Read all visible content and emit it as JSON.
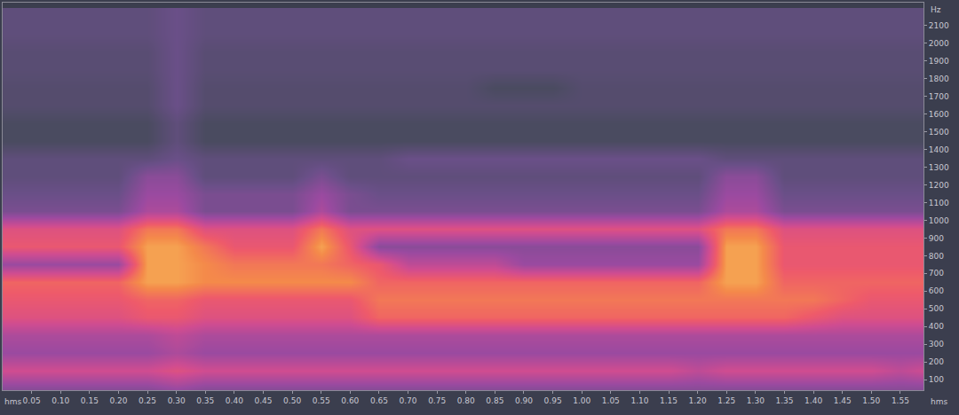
{
  "chart_data": {
    "type": "heatmap",
    "xlabel": "hms",
    "ylabel": "Hz",
    "grid": false,
    "xlim": [
      0,
      1.59
    ],
    "ylim": [
      40,
      2230
    ],
    "zlim": [
      0,
      10
    ],
    "xticks": [
      0.05,
      {
        "value": 0.1,
        "label": "0.10"
      },
      0.15,
      {
        "value": 0.2,
        "label": "0.20"
      },
      0.25,
      {
        "value": 0.3,
        "label": "0.30"
      },
      0.35,
      {
        "value": 0.4,
        "label": "0.40"
      },
      0.45,
      {
        "value": 0.5,
        "label": "0.50"
      },
      0.55,
      {
        "value": 0.6,
        "label": "0.60"
      },
      0.65,
      {
        "value": 0.7,
        "label": "0.70"
      },
      0.75,
      {
        "value": 0.8,
        "label": "0.80"
      },
      0.85,
      {
        "value": 0.9,
        "label": "0.90"
      },
      0.95,
      {
        "value": 1,
        "label": "1.00"
      },
      1.05,
      {
        "value": 1.1,
        "label": "1.10"
      },
      1.15,
      {
        "value": 1.2,
        "label": "1.20"
      },
      1.25,
      {
        "value": 1.3,
        "label": "1.30"
      },
      1.35,
      {
        "value": 1.4,
        "label": "1.40"
      },
      1.45,
      {
        "value": 1.5,
        "label": "1.50"
      },
      1.55
    ],
    "yticks": [
      100,
      200,
      300,
      400,
      500,
      600,
      700,
      800,
      900,
      1000,
      1100,
      1200,
      1300,
      1400,
      1500,
      1600,
      1700,
      1800,
      1900,
      2000,
      2100
    ],
    "x": [
      0,
      0.05,
      0.1,
      0.15,
      0.2,
      0.25,
      0.3,
      0.35,
      0.4,
      0.45,
      0.5,
      0.55,
      0.6,
      0.65,
      0.7,
      0.75,
      0.8,
      0.85,
      0.9,
      0.95,
      1,
      1.05,
      1.1,
      1.15,
      1.2,
      1.25,
      1.3,
      1.35,
      1.4,
      1.45,
      1.5,
      1.55,
      1.6
    ],
    "y": [
      50,
      150,
      250,
      350,
      450,
      550,
      650,
      750,
      850,
      950,
      1050,
      1150,
      1250,
      1350,
      1450,
      1550,
      1650,
      1750,
      1850,
      1950,
      2050,
      2150
    ],
    "z": [
      [
        4,
        4,
        4,
        4,
        4,
        4,
        4.5,
        4,
        4,
        4,
        4,
        4,
        4,
        4,
        4,
        4,
        4,
        4,
        4,
        4,
        4,
        4,
        4,
        4,
        4,
        4,
        4,
        4,
        4,
        4,
        4,
        4,
        4
      ],
      [
        6,
        6,
        6,
        6,
        6,
        6,
        6.5,
        6,
        6,
        6,
        6,
        6,
        6,
        6,
        6,
        6,
        6,
        6,
        6,
        6,
        6,
        6,
        6,
        6,
        5.5,
        6,
        6,
        6,
        6,
        6,
        6,
        5.5,
        6
      ],
      [
        4.5,
        4.5,
        4.5,
        4.5,
        4.5,
        4.5,
        5,
        4.5,
        4.5,
        4.5,
        4.5,
        4.5,
        4.5,
        4.5,
        4.5,
        4.5,
        4.5,
        4.5,
        4.5,
        4.5,
        4.5,
        4.5,
        4.5,
        4.5,
        4.5,
        4.5,
        4.5,
        4.5,
        4.5,
        4.5,
        4.5,
        4.5,
        4.5
      ],
      [
        5,
        5,
        5,
        5,
        5,
        5,
        5.5,
        5,
        5,
        5,
        5,
        5,
        5,
        5,
        5,
        5,
        5,
        5,
        5,
        5,
        5,
        5,
        5,
        5,
        5,
        5,
        5,
        5,
        5,
        5,
        5,
        5,
        5
      ],
      [
        6.5,
        6.5,
        6.5,
        6.5,
        6.5,
        7,
        7,
        6.5,
        6.5,
        6.5,
        6.5,
        6.5,
        6.5,
        7.5,
        7.5,
        7.5,
        7.5,
        7.5,
        7.5,
        7.5,
        7.5,
        7.5,
        7.5,
        7.5,
        7.5,
        7.5,
        7.5,
        7.5,
        7,
        6.5,
        6.5,
        6.5,
        6.5
      ],
      [
        7,
        7,
        7,
        7,
        7,
        7.5,
        7.5,
        7,
        7,
        7,
        7,
        7,
        7,
        8,
        8,
        8,
        8,
        8,
        8,
        8,
        8,
        8,
        8,
        8,
        8,
        8,
        8,
        8,
        8,
        7.5,
        7,
        7,
        7
      ],
      [
        7.5,
        7.5,
        7.5,
        7.5,
        7.5,
        9,
        9,
        8.5,
        8.5,
        8.5,
        8.5,
        8.5,
        8.5,
        7.5,
        7.5,
        7.5,
        7.5,
        7.5,
        7.5,
        7.5,
        7.5,
        7.5,
        7.5,
        7.5,
        7.5,
        9,
        9,
        7.5,
        7.5,
        7.5,
        7.5,
        7.5,
        7.5
      ],
      [
        4.5,
        4.5,
        4.5,
        4.5,
        4.5,
        9,
        9,
        8.5,
        8,
        8,
        8,
        8,
        7.5,
        7,
        5.5,
        5.5,
        5.5,
        5.5,
        4.5,
        4.5,
        4.5,
        4.5,
        4.5,
        4.5,
        4.5,
        9,
        9,
        7,
        7,
        7,
        7,
        7,
        7
      ],
      [
        7,
        7,
        7,
        7,
        7,
        9,
        9,
        8,
        7,
        7,
        7,
        9,
        7,
        4,
        4,
        4,
        4,
        4,
        4,
        4,
        4,
        4,
        4,
        4,
        4,
        9,
        9,
        7,
        7,
        7,
        7,
        7,
        7
      ],
      [
        6.5,
        6.5,
        6.5,
        6.5,
        6.5,
        8,
        8,
        6.5,
        6.5,
        6.5,
        6.5,
        8,
        6.5,
        6.5,
        6.5,
        6.5,
        6.5,
        6.5,
        6.5,
        6.5,
        6.5,
        6.5,
        6.5,
        6.5,
        6.5,
        8,
        8,
        6.5,
        6.5,
        6.5,
        6.5,
        6.5,
        6.5
      ],
      [
        3.5,
        3.5,
        3.5,
        3.5,
        3.5,
        5,
        5,
        3.5,
        3.5,
        3.5,
        3.5,
        5,
        3.5,
        3.5,
        3.5,
        3.5,
        3.5,
        3.5,
        3.5,
        3.5,
        3.5,
        3.5,
        3.5,
        3.5,
        3.5,
        5,
        5,
        3.5,
        3.5,
        3.5,
        3.5,
        3.5,
        3.5
      ],
      [
        3,
        3,
        3,
        3,
        3,
        4.5,
        4.5,
        3.5,
        3.5,
        3.5,
        3.5,
        4.5,
        3.5,
        3,
        3,
        3,
        3,
        3,
        3,
        3,
        3,
        3,
        3,
        3,
        3,
        4.5,
        4.5,
        3,
        3,
        3,
        3,
        3,
        3
      ],
      [
        2.5,
        2.5,
        2.5,
        2.5,
        2.5,
        4,
        4,
        2.5,
        2.5,
        2.5,
        2.5,
        3.5,
        2.5,
        2.5,
        2.5,
        2.5,
        2.5,
        2.5,
        2.5,
        2.5,
        2.5,
        2.5,
        2.5,
        2.5,
        2.5,
        4,
        4,
        2.5,
        2.5,
        2.5,
        2.5,
        2.5,
        2.5
      ],
      [
        2.5,
        2.5,
        2.5,
        2.5,
        2.5,
        2.5,
        3,
        2.5,
        2.5,
        2.5,
        2.5,
        2.5,
        2.5,
        2.5,
        3,
        3,
        3,
        3,
        3,
        3,
        3,
        3,
        3,
        3,
        3,
        2.5,
        2.5,
        2.5,
        2.5,
        2.5,
        2.5,
        2.5,
        2.5
      ],
      [
        1.5,
        1.5,
        1.5,
        1.5,
        1.5,
        1.5,
        2.5,
        1.5,
        1.5,
        1.5,
        1.5,
        1.5,
        1.5,
        1.5,
        1.5,
        1.5,
        1.5,
        1.5,
        1.5,
        1.5,
        1.5,
        1.5,
        1.5,
        1.5,
        1.5,
        1.5,
        1.5,
        1.5,
        1.5,
        1.5,
        1.5,
        1.5,
        1.5
      ],
      [
        1.5,
        1.5,
        1.5,
        1.5,
        1.5,
        1.5,
        2.5,
        1.5,
        1.5,
        1.5,
        1.5,
        1.5,
        1.5,
        1.5,
        1.5,
        1.5,
        1.5,
        1.5,
        1.5,
        1.5,
        1.5,
        1.5,
        1.5,
        1.5,
        1.5,
        1.5,
        1.5,
        1.5,
        1.5,
        1.5,
        1.5,
        1.5,
        1.5
      ],
      [
        2,
        2,
        2,
        2,
        2,
        2,
        3,
        2,
        2,
        2,
        2,
        2,
        2,
        2,
        2,
        2,
        2,
        2,
        2,
        2,
        2,
        2,
        2,
        2,
        2,
        2,
        2,
        2,
        2,
        2,
        2,
        2,
        2
      ],
      [
        2,
        2,
        2,
        2,
        2,
        2,
        3,
        2,
        2,
        2,
        2,
        2,
        2,
        2,
        2,
        2,
        2,
        1.5,
        1.5,
        1.5,
        2,
        2,
        2,
        2,
        2,
        2,
        2,
        2,
        2,
        2,
        2,
        2,
        2
      ],
      [
        2.2,
        2.2,
        2.2,
        2.2,
        2.2,
        2.2,
        3,
        2.2,
        2.2,
        2.2,
        2.2,
        2.2,
        2.2,
        2.2,
        2.2,
        2.2,
        2.2,
        2.2,
        2.2,
        2.2,
        2.2,
        2.2,
        2.2,
        2.2,
        2.2,
        2.2,
        2.2,
        2.2,
        2.2,
        2.2,
        2.2,
        2.2,
        2.2
      ],
      [
        2.2,
        2.2,
        2.2,
        2.2,
        2.2,
        2.2,
        3,
        2.2,
        2.2,
        2.2,
        2.2,
        2.2,
        2.2,
        2.2,
        2.2,
        2.2,
        2.2,
        2.2,
        2.2,
        2.2,
        2.2,
        2.2,
        2.2,
        2.2,
        2.2,
        2.2,
        2.2,
        2.2,
        2.2,
        2.2,
        2.2,
        2.2,
        2.2
      ],
      [
        2.5,
        2.5,
        2.5,
        2.5,
        2.5,
        2.5,
        3,
        2.5,
        2.5,
        2.5,
        2.5,
        2.5,
        2.5,
        2.5,
        2.5,
        2.5,
        2.5,
        2.5,
        2.5,
        2.5,
        2.5,
        2.5,
        2.5,
        2.5,
        2.5,
        2.5,
        2.5,
        2.5,
        2.5,
        2.5,
        2.5,
        2.5,
        2.5
      ],
      [
        2.5,
        2.5,
        2.5,
        2.5,
        2.5,
        2.5,
        3,
        2.5,
        2.5,
        2.5,
        2.5,
        2.5,
        2.5,
        2.5,
        2.5,
        2.5,
        2.5,
        2.5,
        2.5,
        2.5,
        2.5,
        2.5,
        2.5,
        2.5,
        2.5,
        2.5,
        2.5,
        2.5,
        2.5,
        2.5,
        2.5,
        2.5,
        2.5
      ]
    ]
  }
}
